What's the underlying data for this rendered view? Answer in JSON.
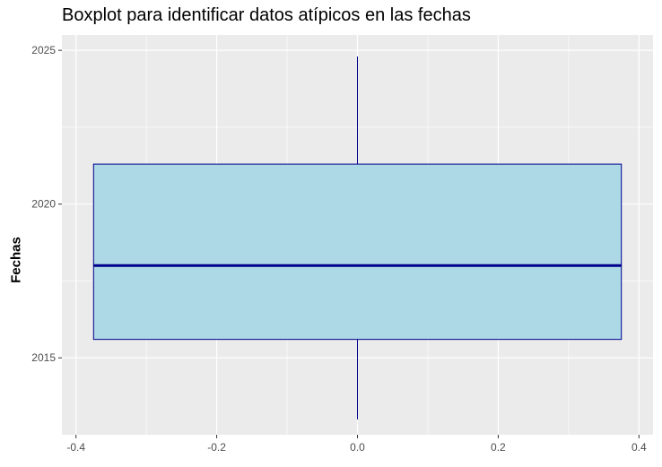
{
  "chart_data": {
    "type": "boxplot",
    "title": "Boxplot para identificar datos atípicos en las fechas",
    "xlabel": "",
    "ylabel": "Fechas",
    "xlim": [
      -0.42,
      0.42
    ],
    "ylim": [
      2012.5,
      2025.5
    ],
    "x_ticks": [
      -0.4,
      -0.2,
      0.0,
      0.2,
      0.4
    ],
    "x_tick_labels": [
      "-0.4",
      "-0.2",
      "0.0",
      "0.2",
      "0.4"
    ],
    "y_ticks": [
      2015,
      2020,
      2025
    ],
    "y_tick_labels": [
      "2015",
      "2020",
      "2025"
    ],
    "box": {
      "x_center": 0.0,
      "x_left": -0.375,
      "x_right": 0.375,
      "whisker_min": 2013.0,
      "q1": 2015.6,
      "median": 2018.0,
      "q3": 2021.3,
      "whisker_max": 2024.8
    },
    "grid": true,
    "legend": "none",
    "colors": {
      "panel_background": "#ebebeb",
      "grid_major": "#ffffff",
      "box_fill": "#add8e6",
      "box_outline": "#00008b",
      "median_line": "#00008b",
      "whisker": "#00008b",
      "tick_label": "#4d4d4d"
    }
  }
}
